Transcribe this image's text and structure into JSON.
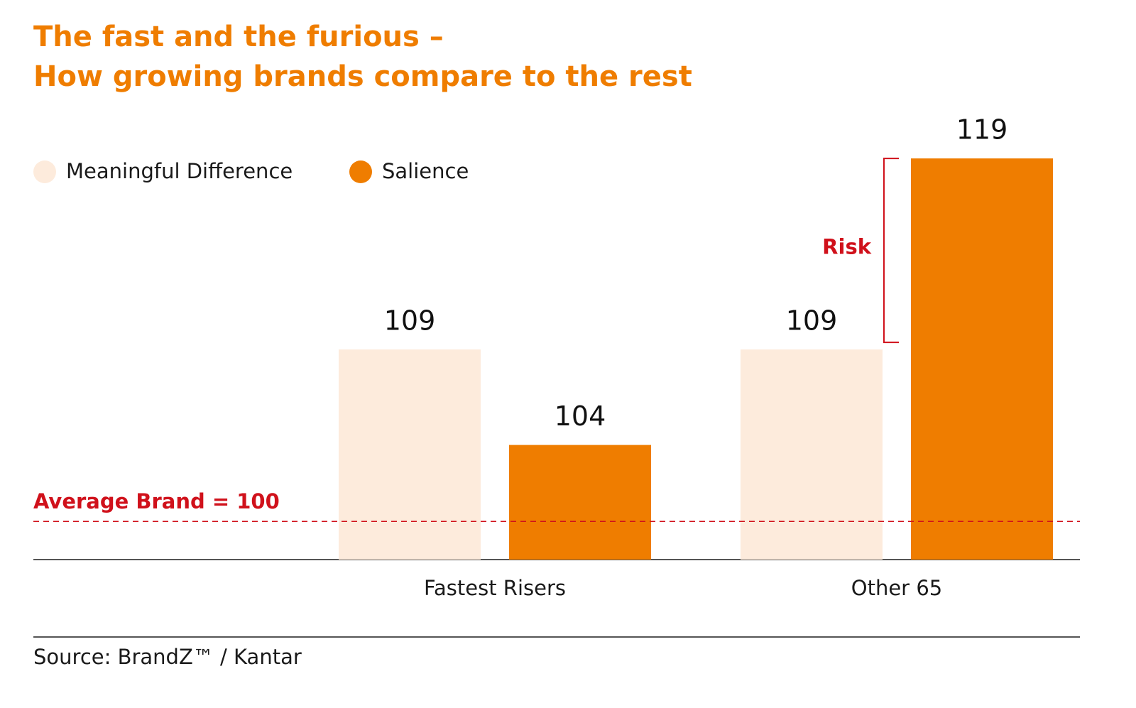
{
  "chart_data": {
    "type": "bar",
    "title": [
      "The fast and the furious –",
      "How growing brands compare to the rest"
    ],
    "categories": [
      "Fastest Risers",
      "Other 65"
    ],
    "series": [
      {
        "name": "Meaningful Difference",
        "color": "#fdebdc",
        "values": [
          109,
          109
        ]
      },
      {
        "name": "Salience",
        "color": "#ef7d00",
        "values": [
          104,
          119
        ]
      }
    ],
    "ylim": [
      98,
      121
    ],
    "reference_line": {
      "value": 100,
      "label": "Average Brand = 100",
      "color": "#d0111b"
    },
    "annotation": "Risk",
    "source": "Source: BrandZ™ / Kantar"
  }
}
